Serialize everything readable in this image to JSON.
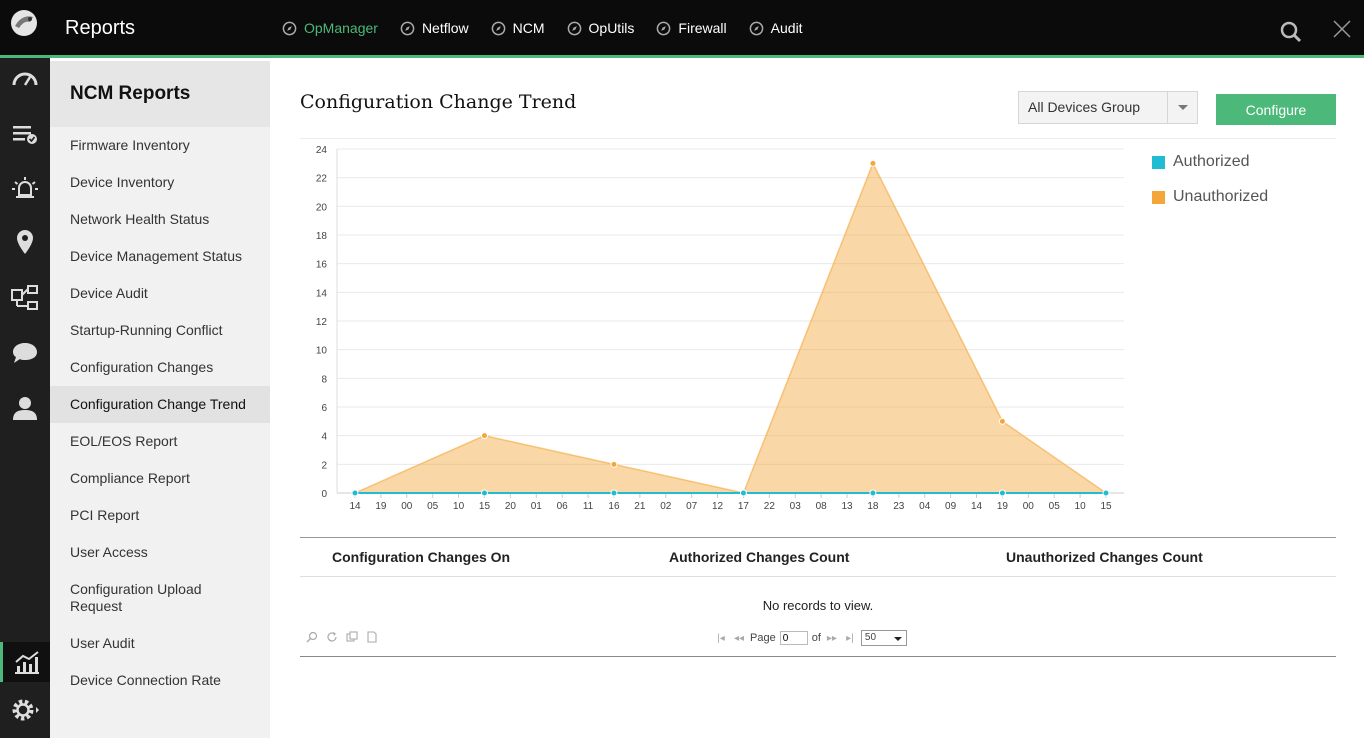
{
  "header": {
    "app_title": "Reports",
    "nav": [
      {
        "label": "OpManager",
        "active": true
      },
      {
        "label": "Netflow",
        "active": false
      },
      {
        "label": "NCM",
        "active": false
      },
      {
        "label": "OpUtils",
        "active": false
      },
      {
        "label": "Firewall",
        "active": false
      },
      {
        "label": "Audit",
        "active": false
      }
    ]
  },
  "iconbar": [
    "dashboard-icon",
    "inventory-icon",
    "alarms-icon",
    "maps-icon",
    "workflow-icon",
    "chat-icon",
    "user-icon",
    "reports-icon",
    "settings-icon"
  ],
  "sidebar": {
    "title": "NCM Reports",
    "items": [
      {
        "label": "Firmware Inventory"
      },
      {
        "label": "Device Inventory"
      },
      {
        "label": "Network Health Status"
      },
      {
        "label": "Device Management Status"
      },
      {
        "label": "Device Audit"
      },
      {
        "label": "Startup-Running Conflict"
      },
      {
        "label": "Configuration Changes"
      },
      {
        "label": "Configuration Change Trend",
        "active": true
      },
      {
        "label": "EOL/EOS Report"
      },
      {
        "label": "Compliance Report"
      },
      {
        "label": "PCI Report"
      },
      {
        "label": "User Access"
      },
      {
        "label": "Configuration Upload Request"
      },
      {
        "label": "User Audit"
      },
      {
        "label": "Device Connection Rate"
      }
    ]
  },
  "main": {
    "title": "Configuration Change Trend",
    "device_group": "All Devices Group",
    "configure_label": "Configure"
  },
  "colors": {
    "accent": "#4cb87a",
    "authorized": "#1fbcd2",
    "unauthorized": "#f5a63a"
  },
  "chart_data": {
    "type": "area",
    "x": [
      "14",
      "19",
      "00",
      "05",
      "10",
      "15",
      "20",
      "01",
      "06",
      "11",
      "16",
      "21",
      "02",
      "07",
      "12",
      "17",
      "22",
      "03",
      "08",
      "13",
      "18",
      "23",
      "04",
      "09",
      "14",
      "19",
      "00",
      "05",
      "10",
      "15"
    ],
    "series": [
      {
        "name": "Authorized",
        "points": [
          [
            0,
            0
          ],
          [
            5,
            0
          ],
          [
            10,
            0
          ],
          [
            15,
            0
          ],
          [
            20,
            0
          ],
          [
            25,
            0
          ],
          [
            29,
            0
          ]
        ]
      },
      {
        "name": "Unauthorized",
        "points": [
          [
            0,
            0
          ],
          [
            5,
            4
          ],
          [
            10,
            2
          ],
          [
            15,
            0
          ],
          [
            20,
            23
          ],
          [
            25,
            5
          ],
          [
            29,
            0
          ]
        ]
      }
    ],
    "ylim": [
      0,
      24
    ],
    "yticks": [
      0,
      2,
      4,
      6,
      8,
      10,
      12,
      14,
      16,
      18,
      20,
      22,
      24
    ],
    "grid": true,
    "legend": "top-right"
  },
  "table": {
    "columns": [
      "Configuration Changes On",
      "Authorized Changes Count",
      "Unauthorized Changes Count"
    ],
    "empty_text": "No records to view.",
    "pager": {
      "page_label": "Page",
      "page_value": "0",
      "of_label": "of",
      "page_size": "50"
    }
  }
}
